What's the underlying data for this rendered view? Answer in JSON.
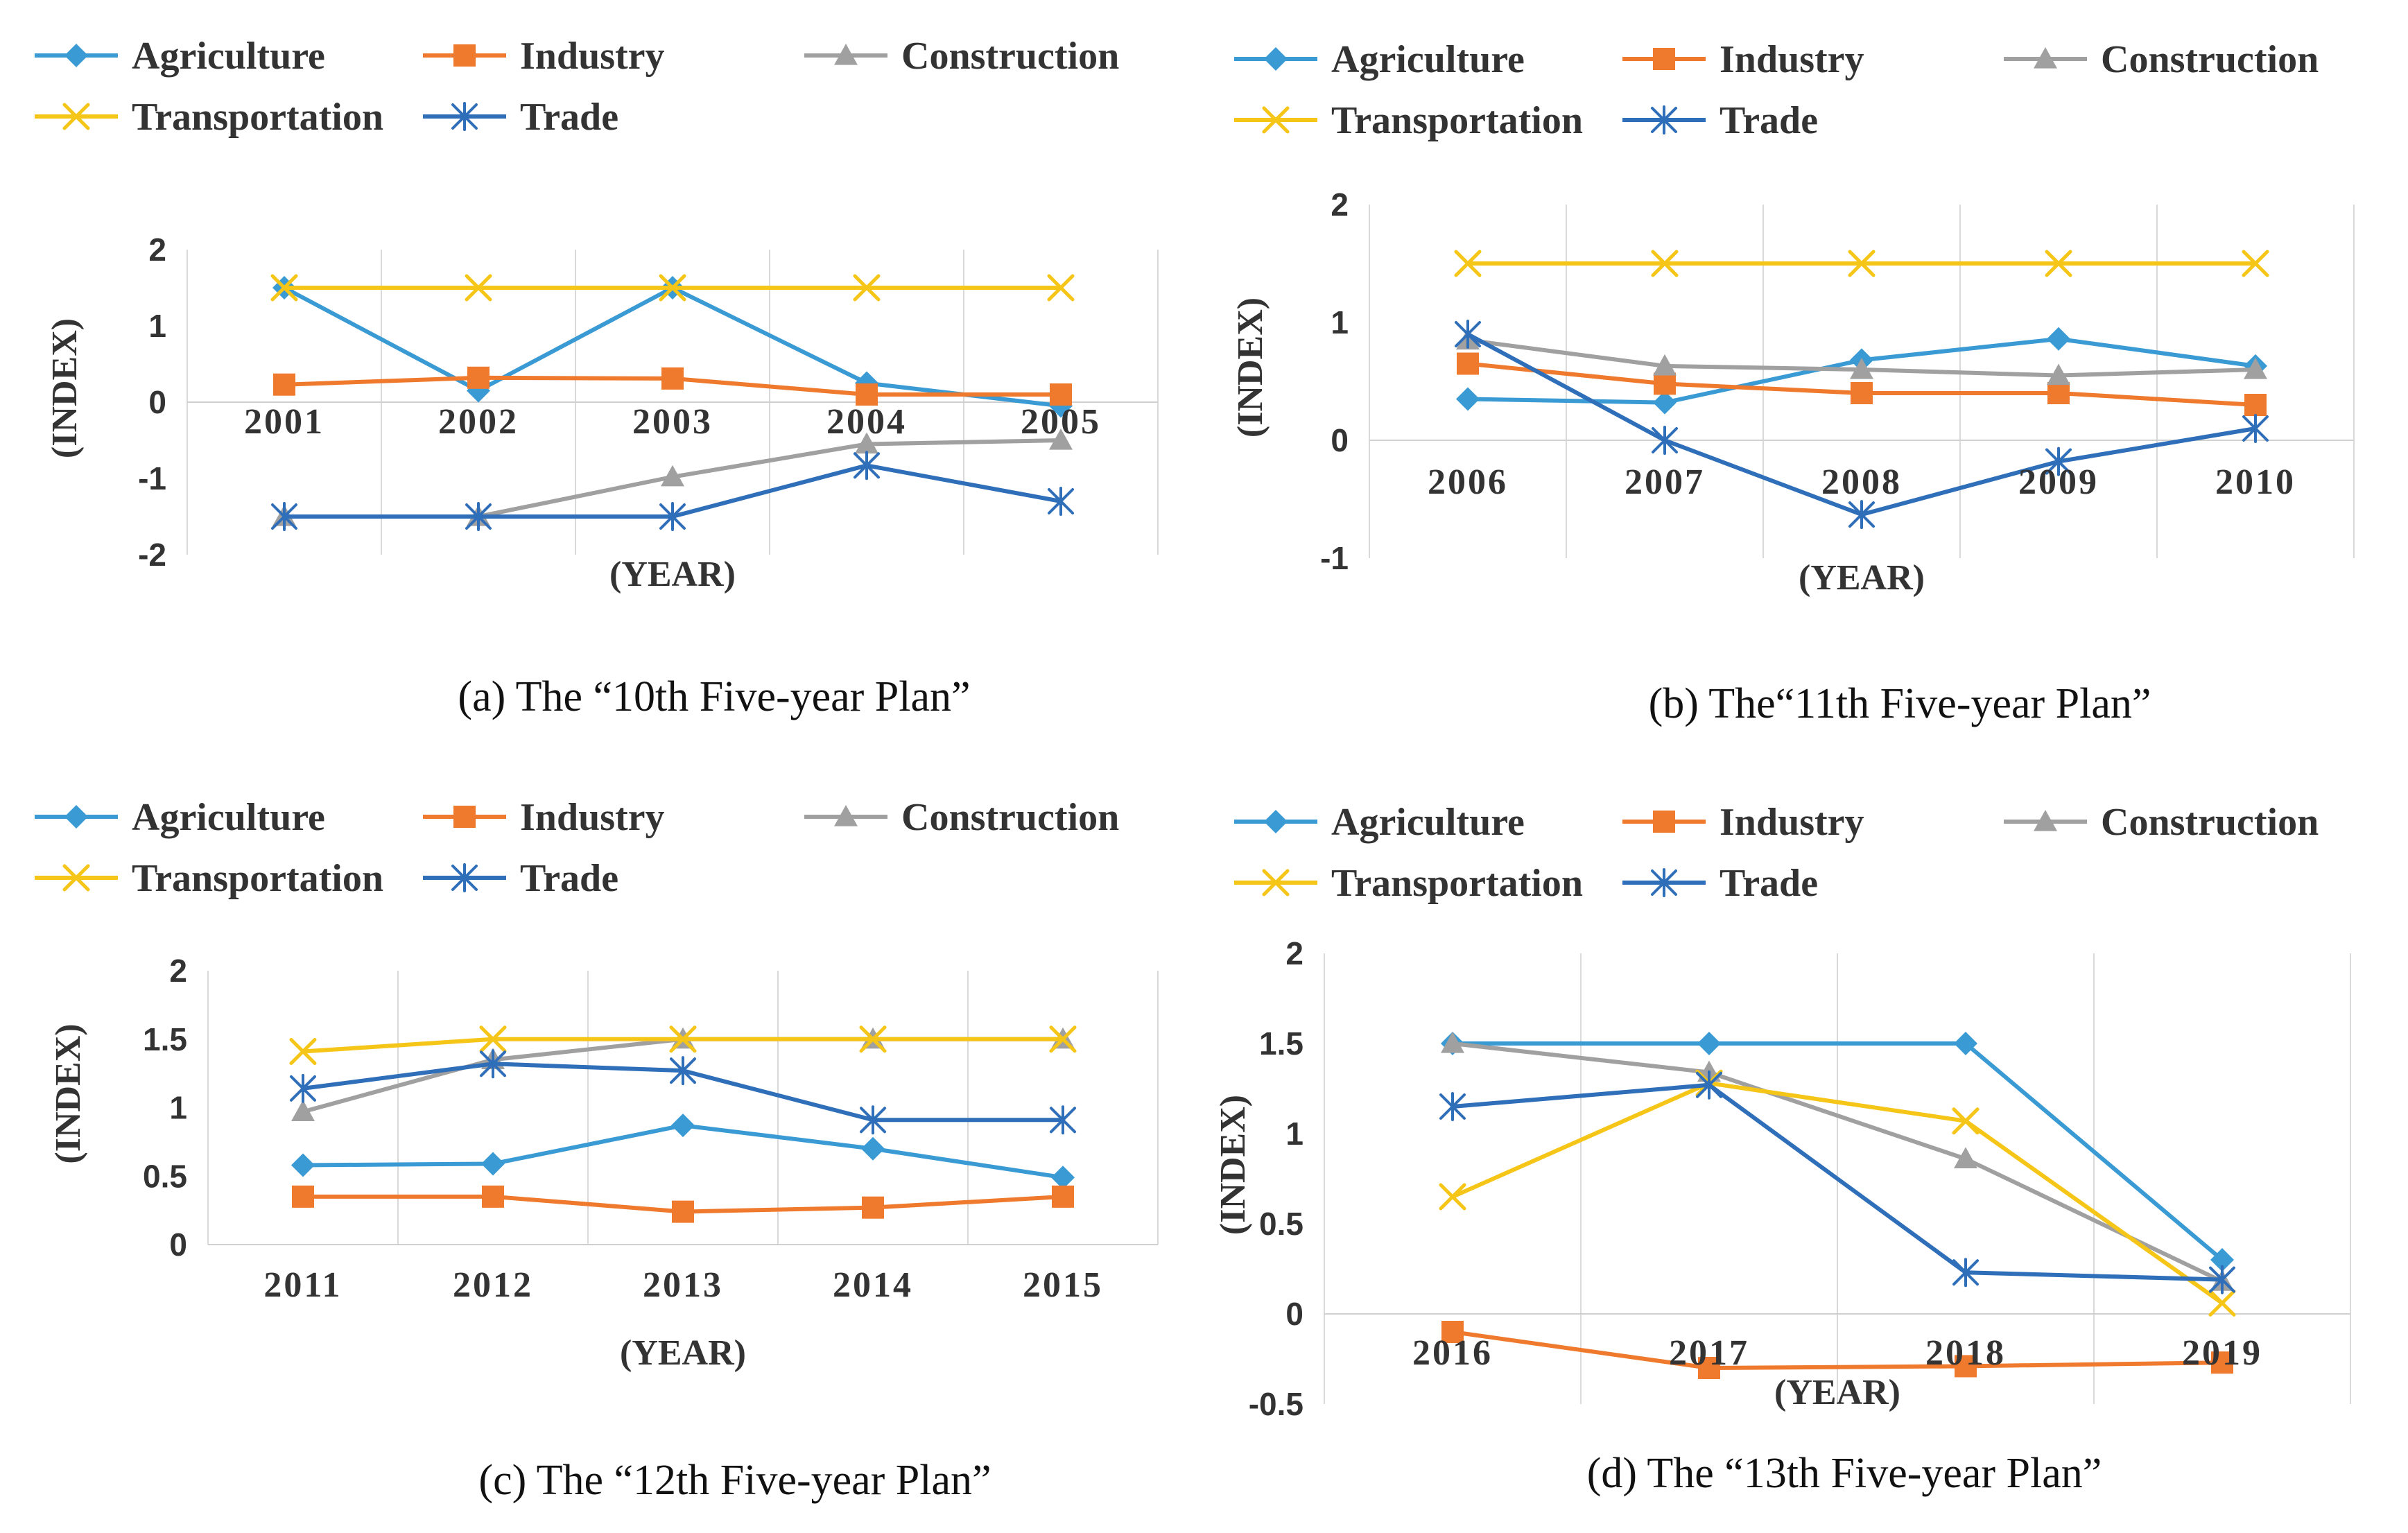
{
  "series_styles": {
    "Agriculture": {
      "color": "#3a9ad4",
      "marker": "diamond"
    },
    "Industry": {
      "color": "#ef7a2d",
      "marker": "square"
    },
    "Construction": {
      "color": "#a0a0a0",
      "marker": "triangle"
    },
    "Transportation": {
      "color": "#f5c518",
      "marker": "x"
    },
    "Trade": {
      "color": "#2f6eb8",
      "marker": "star"
    }
  },
  "chart_data": [
    {
      "type": "line",
      "caption": "(a)  The “10th Five-year Plan”",
      "xlabel": "(YEAR)",
      "ylabel": "(INDEX)",
      "categories": [
        "2001",
        "2002",
        "2003",
        "2004",
        "2005"
      ],
      "ylim": [
        -2,
        2
      ],
      "yticks": [
        -2,
        -1,
        0,
        1,
        2
      ],
      "ytick_labels": [
        "-2",
        "-1",
        "0",
        "1",
        "2"
      ],
      "grid": true,
      "legend": [
        "Agriculture",
        "Industry",
        "Construction",
        "Transportation",
        "Trade"
      ],
      "series": [
        {
          "name": "Agriculture",
          "values": [
            1.5,
            0.15,
            1.5,
            0.25,
            -0.05
          ]
        },
        {
          "name": "Industry",
          "values": [
            0.23,
            0.32,
            0.31,
            0.1,
            0.1
          ]
        },
        {
          "name": "Construction",
          "values": [
            -1.5,
            -1.5,
            -0.98,
            -0.55,
            -0.5
          ]
        },
        {
          "name": "Transportation",
          "values": [
            1.5,
            1.5,
            1.5,
            1.5,
            1.5
          ]
        },
        {
          "name": "Trade",
          "values": [
            -1.5,
            -1.5,
            -1.5,
            -0.83,
            -1.3
          ]
        }
      ]
    },
    {
      "type": "line",
      "caption": "(b) The“11th Five-year Plan”",
      "xlabel": "(YEAR)",
      "ylabel": "(INDEX)",
      "categories": [
        "2006",
        "2007",
        "2008",
        "2009",
        "2010"
      ],
      "ylim": [
        -1,
        2
      ],
      "yticks": [
        -1,
        0,
        1,
        2
      ],
      "ytick_labels": [
        "-1",
        "0",
        "1",
        "2"
      ],
      "grid": true,
      "legend": [
        "Agriculture",
        "Industry",
        "Construction",
        "Transportation",
        "Trade"
      ],
      "series": [
        {
          "name": "Agriculture",
          "values": [
            0.35,
            0.32,
            0.68,
            0.86,
            0.63
          ]
        },
        {
          "name": "Industry",
          "values": [
            0.65,
            0.48,
            0.4,
            0.4,
            0.3
          ]
        },
        {
          "name": "Construction",
          "values": [
            0.85,
            0.63,
            0.6,
            0.55,
            0.6
          ]
        },
        {
          "name": "Transportation",
          "values": [
            1.5,
            1.5,
            1.5,
            1.5,
            1.5
          ]
        },
        {
          "name": "Trade",
          "values": [
            0.9,
            0.0,
            -0.63,
            -0.18,
            0.1
          ]
        }
      ]
    },
    {
      "type": "line",
      "caption": "(c) The “12th Five-year Plan”",
      "xlabel": "(YEAR)",
      "ylabel": "(INDEX)",
      "categories": [
        "2011",
        "2012",
        "2013",
        "2014",
        "2015"
      ],
      "ylim": [
        0,
        2
      ],
      "yticks": [
        0,
        0.5,
        1,
        1.5,
        2
      ],
      "ytick_labels": [
        "0",
        "0.5",
        "1",
        "1.5",
        "2"
      ],
      "grid": true,
      "legend": [
        "Agriculture",
        "Industry",
        "Construction",
        "Transportation",
        "Trade"
      ],
      "series": [
        {
          "name": "Agriculture",
          "values": [
            0.58,
            0.59,
            0.87,
            0.7,
            0.49
          ]
        },
        {
          "name": "Industry",
          "values": [
            0.35,
            0.35,
            0.24,
            0.27,
            0.35
          ]
        },
        {
          "name": "Construction",
          "values": [
            0.97,
            1.35,
            1.5,
            1.5,
            1.5
          ]
        },
        {
          "name": "Transportation",
          "values": [
            1.41,
            1.5,
            1.5,
            1.5,
            1.5
          ]
        },
        {
          "name": "Trade",
          "values": [
            1.14,
            1.32,
            1.27,
            0.91,
            0.91
          ]
        }
      ]
    },
    {
      "type": "line",
      "caption": "(d) The “13th Five-year Plan”",
      "xlabel": "(YEAR)",
      "ylabel": "(INDEX)",
      "categories": [
        "2016",
        "2017",
        "2018",
        "2019"
      ],
      "ylim": [
        -0.5,
        2
      ],
      "yticks": [
        -0.5,
        0,
        0.5,
        1,
        1.5,
        2
      ],
      "ytick_labels": [
        "-0.5",
        "0",
        "0.5",
        "1",
        "1.5",
        "2"
      ],
      "grid": true,
      "legend": [
        "Agriculture",
        "Industry",
        "Construction",
        "Transportation",
        "Trade"
      ],
      "series": [
        {
          "name": "Agriculture",
          "values": [
            1.5,
            1.5,
            1.5,
            0.3
          ]
        },
        {
          "name": "Industry",
          "values": [
            -0.1,
            -0.3,
            -0.29,
            -0.27
          ]
        },
        {
          "name": "Construction",
          "values": [
            1.5,
            1.34,
            0.86,
            0.18
          ]
        },
        {
          "name": "Transportation",
          "values": [
            0.65,
            1.28,
            1.07,
            0.06
          ]
        },
        {
          "name": "Trade",
          "values": [
            1.15,
            1.27,
            0.23,
            0.19
          ]
        }
      ]
    }
  ]
}
